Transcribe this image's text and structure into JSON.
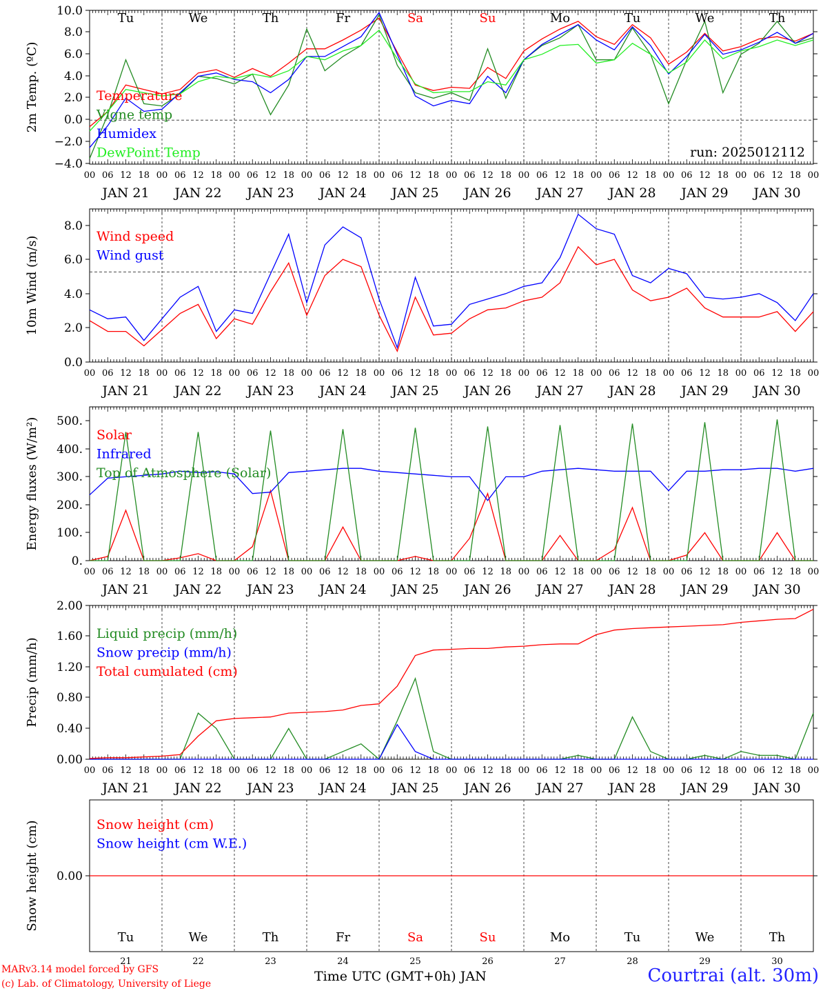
{
  "colors": {
    "red": "#ff0000",
    "green": "#228b22",
    "blue": "#0000ff",
    "lime": "#22ee22",
    "axis": "#000000",
    "grid": "#444444",
    "location": "#2222ff"
  },
  "footer": {
    "credit_line1": "MARv3.14 model forced by GFS",
    "credit_line2": "(c) Lab. of Climatology, University of Liege",
    "time_axis_label": "Time UTC (GMT+0h) JAN",
    "location": "Courtrai (alt. 30m)"
  },
  "chart_data": [
    {
      "type": "line",
      "panel": "temperature",
      "ylabel": "2m Temp. (ºC)",
      "ylim": [
        -4,
        10
      ],
      "yticks": [
        "10.0",
        "8.0",
        "6.0",
        "4.0",
        "2.0",
        "0.0",
        "−2.0",
        "−4.0"
      ],
      "reference_line": 0,
      "annotation": "run: 2025012112",
      "weekdays": [
        {
          "label": "Tu",
          "color": "#000000"
        },
        {
          "label": "We",
          "color": "#000000"
        },
        {
          "label": "Th",
          "color": "#000000"
        },
        {
          "label": "Fr",
          "color": "#000000"
        },
        {
          "label": "Sa",
          "color": "#ff0000"
        },
        {
          "label": "Su",
          "color": "#ff0000"
        },
        {
          "label": "Mo",
          "color": "#000000"
        },
        {
          "label": "Tu",
          "color": "#000000"
        },
        {
          "label": "We",
          "color": "#000000"
        },
        {
          "label": "Th",
          "color": "#000000"
        }
      ],
      "x_hours": [
        0,
        6,
        12,
        18,
        24,
        30,
        36,
        42,
        48,
        54,
        60,
        66,
        72,
        78,
        84,
        90,
        96,
        102,
        108,
        114,
        120,
        126,
        132,
        138,
        144,
        150,
        156,
        162,
        168,
        174,
        180,
        186,
        192,
        198,
        204,
        210,
        216,
        222,
        228,
        234,
        240
      ],
      "series": [
        {
          "name": "Temperature",
          "color": "#ff0000",
          "values": [
            -0.6,
            0.8,
            3.2,
            2.8,
            2.4,
            2.8,
            4.3,
            4.6,
            3.9,
            4.7,
            4.0,
            5.2,
            6.5,
            6.5,
            7.3,
            8.2,
            9.3,
            6.2,
            3.2,
            2.7,
            3.0,
            2.9,
            4.8,
            3.8,
            6.3,
            7.4,
            8.3,
            9.0,
            7.6,
            6.9,
            8.7,
            7.5,
            5.1,
            6.2,
            7.9,
            6.3,
            6.7,
            7.4,
            7.6,
            7.2,
            7.9
          ]
        },
        {
          "name": "Vigne temp",
          "color": "#228b22",
          "values": [
            -3.5,
            0.5,
            5.5,
            1.5,
            1.3,
            2.4,
            4.0,
            3.8,
            3.3,
            4.2,
            0.5,
            3.2,
            8.3,
            4.5,
            5.8,
            6.8,
            9.6,
            5.0,
            2.5,
            2.0,
            2.5,
            1.8,
            6.5,
            2.0,
            5.5,
            6.8,
            7.5,
            8.7,
            5.5,
            5.5,
            8.4,
            6.0,
            1.5,
            5.5,
            9.0,
            2.5,
            6.0,
            7.0,
            9.0,
            7.0,
            7.5
          ]
        },
        {
          "name": "Humidex",
          "color": "#0000ff",
          "values": [
            -2.5,
            -0.5,
            2.0,
            0.8,
            1.0,
            2.5,
            4.0,
            4.3,
            3.7,
            3.5,
            2.5,
            3.7,
            5.8,
            5.8,
            6.7,
            7.6,
            9.8,
            6.0,
            2.2,
            1.3,
            1.8,
            1.5,
            4.0,
            2.5,
            5.5,
            6.9,
            7.8,
            8.7,
            7.3,
            6.4,
            8.5,
            6.8,
            4.2,
            5.8,
            7.8,
            6.0,
            6.4,
            7.1,
            8.0,
            7.0,
            7.9
          ]
        },
        {
          "name": "DewPoint Temp",
          "color": "#22ee22",
          "values": [
            -1.0,
            0.8,
            2.8,
            2.5,
            2.2,
            2.4,
            3.5,
            4.0,
            3.8,
            4.2,
            3.9,
            4.5,
            5.8,
            5.5,
            6.3,
            6.8,
            8.2,
            5.6,
            3.3,
            2.5,
            2.6,
            2.6,
            3.5,
            3.2,
            5.5,
            6.0,
            6.8,
            6.9,
            5.2,
            5.5,
            7.0,
            6.0,
            4.3,
            5.3,
            7.3,
            5.6,
            6.3,
            6.7,
            7.3,
            6.8,
            7.3
          ]
        }
      ],
      "legend": "top-left"
    },
    {
      "type": "line",
      "panel": "wind",
      "ylabel": "10m Wind (m/s)",
      "ylim": [
        0,
        8.5
      ],
      "yticks": [
        "8.0",
        "6.0",
        "4.0",
        "2.0",
        "0.0"
      ],
      "reference_line": 5.0,
      "x_hours": [
        0,
        6,
        12,
        18,
        24,
        30,
        36,
        42,
        48,
        54,
        60,
        66,
        72,
        78,
        84,
        90,
        96,
        102,
        108,
        114,
        120,
        126,
        132,
        138,
        144,
        150,
        156,
        162,
        168,
        174,
        180,
        186,
        192,
        198,
        204,
        210,
        216,
        222,
        228,
        234,
        240
      ],
      "series": [
        {
          "name": "Wind speed",
          "color": "#ff0000",
          "values": [
            2.3,
            1.7,
            1.7,
            0.9,
            1.8,
            2.7,
            3.2,
            1.3,
            2.4,
            2.1,
            3.9,
            5.5,
            2.6,
            4.8,
            5.7,
            5.3,
            2.6,
            0.6,
            3.6,
            1.5,
            1.6,
            2.4,
            2.9,
            3.0,
            3.4,
            3.6,
            4.4,
            6.4,
            5.4,
            5.7,
            4.0,
            3.4,
            3.6,
            4.1,
            3.0,
            2.5,
            2.5,
            2.5,
            2.8,
            1.7,
            2.8
          ]
        },
        {
          "name": "Wind gust",
          "color": "#0000ff",
          "values": [
            2.9,
            2.4,
            2.5,
            1.2,
            2.4,
            3.6,
            4.2,
            1.7,
            2.9,
            2.7,
            4.9,
            7.1,
            3.3,
            6.5,
            7.5,
            6.9,
            3.5,
            0.8,
            4.7,
            2.0,
            2.1,
            3.2,
            3.5,
            3.8,
            4.2,
            4.4,
            5.8,
            8.2,
            7.4,
            7.1,
            4.8,
            4.4,
            5.2,
            4.9,
            3.6,
            3.5,
            3.6,
            3.8,
            3.3,
            2.3,
            3.8
          ]
        }
      ],
      "legend": "top-left"
    },
    {
      "type": "line",
      "panel": "energy",
      "ylabel": "Energy fluxes (W/m²)",
      "ylim": [
        0,
        550
      ],
      "yticks": [
        "500.",
        "400.",
        "300.",
        "200.",
        "100.",
        "0."
      ],
      "x_hours": [
        0,
        6,
        12,
        18,
        24,
        30,
        36,
        42,
        48,
        54,
        60,
        66,
        72,
        78,
        84,
        90,
        96,
        102,
        108,
        114,
        120,
        126,
        132,
        138,
        144,
        150,
        156,
        162,
        168,
        174,
        180,
        186,
        192,
        198,
        204,
        210,
        216,
        222,
        228,
        234,
        240
      ],
      "series": [
        {
          "name": "Solar",
          "color": "#ff0000",
          "values": [
            0,
            15,
            180,
            0,
            0,
            10,
            25,
            0,
            0,
            50,
            250,
            0,
            0,
            0,
            120,
            0,
            0,
            0,
            15,
            0,
            0,
            80,
            240,
            0,
            0,
            0,
            90,
            0,
            0,
            40,
            190,
            0,
            0,
            20,
            100,
            0,
            0,
            0,
            100,
            0,
            0
          ]
        },
        {
          "name": "Infrared",
          "color": "#0000ff",
          "values": [
            235,
            295,
            300,
            305,
            310,
            320,
            315,
            318,
            310,
            240,
            245,
            315,
            320,
            325,
            330,
            330,
            320,
            315,
            310,
            305,
            300,
            300,
            215,
            300,
            300,
            320,
            325,
            330,
            325,
            320,
            320,
            320,
            250,
            320,
            320,
            325,
            325,
            330,
            330,
            320,
            330
          ]
        },
        {
          "name": "Top of Atmosphere (Solar)",
          "color": "#228b22",
          "values": [
            0,
            0,
            460,
            0,
            0,
            0,
            460,
            0,
            0,
            0,
            465,
            0,
            0,
            0,
            470,
            0,
            0,
            0,
            475,
            0,
            0,
            0,
            480,
            0,
            0,
            0,
            485,
            0,
            0,
            0,
            490,
            0,
            0,
            0,
            495,
            0,
            0,
            0,
            505,
            0,
            0
          ]
        }
      ],
      "legend": "top-left"
    },
    {
      "type": "line",
      "panel": "precip",
      "ylabel": "Precip (mm/h)",
      "ylim": [
        0,
        2.0
      ],
      "yticks": [
        "2.00",
        "1.60",
        "1.20",
        "0.80",
        "0.40",
        "0.00"
      ],
      "x_hours": [
        0,
        6,
        12,
        18,
        24,
        30,
        36,
        42,
        48,
        54,
        60,
        66,
        72,
        78,
        84,
        90,
        96,
        102,
        108,
        114,
        120,
        126,
        132,
        138,
        144,
        150,
        156,
        162,
        168,
        174,
        180,
        186,
        192,
        198,
        204,
        210,
        216,
        222,
        228,
        234,
        240
      ],
      "series": [
        {
          "name": "Liquid precip (mm/h)",
          "color": "#228b22",
          "values": [
            0,
            0,
            0,
            0,
            0,
            0,
            0.6,
            0.4,
            0,
            0,
            0,
            0.4,
            0,
            0,
            0.1,
            0.2,
            0,
            0.5,
            1.05,
            0.1,
            0,
            0,
            0,
            0,
            0,
            0,
            0,
            0.05,
            0,
            0,
            0.55,
            0.1,
            0,
            0,
            0.05,
            0,
            0.1,
            0.05,
            0.05,
            0,
            0.6
          ]
        },
        {
          "name": "Snow precip (mm/h)",
          "color": "#0000ff",
          "values": [
            0,
            0,
            0,
            0,
            0,
            0,
            0,
            0,
            0,
            0,
            0,
            0,
            0,
            0,
            0,
            0,
            0,
            0.45,
            0.1,
            0,
            0,
            0,
            0,
            0,
            0,
            0,
            0,
            0,
            0,
            0,
            0,
            0,
            0,
            0,
            0,
            0,
            0,
            0,
            0,
            0,
            0
          ]
        },
        {
          "name": "Total cumulated (cm)",
          "color": "#ff0000",
          "values": [
            0.01,
            0.02,
            0.02,
            0.03,
            0.04,
            0.06,
            0.3,
            0.5,
            0.53,
            0.54,
            0.55,
            0.6,
            0.61,
            0.62,
            0.64,
            0.7,
            0.72,
            0.95,
            1.35,
            1.42,
            1.43,
            1.44,
            1.44,
            1.46,
            1.47,
            1.49,
            1.5,
            1.5,
            1.62,
            1.68,
            1.7,
            1.71,
            1.72,
            1.73,
            1.74,
            1.75,
            1.78,
            1.8,
            1.82,
            1.83,
            1.95
          ]
        }
      ],
      "legend": "top-left"
    },
    {
      "type": "line",
      "panel": "snow",
      "ylabel": "Snow height (cm)",
      "ylim": [
        -1,
        1
      ],
      "yticks": [
        "0.00"
      ],
      "x_hours": [
        0,
        240
      ],
      "series": [
        {
          "name": "Snow height (cm)",
          "color": "#ff0000",
          "values": [
            0,
            0
          ]
        },
        {
          "name": "Snow height (cm W.E.)",
          "color": "#0000ff",
          "values": []
        }
      ],
      "weekdays": [
        {
          "label": "Tu",
          "color": "#000000"
        },
        {
          "label": "We",
          "color": "#000000"
        },
        {
          "label": "Th",
          "color": "#000000"
        },
        {
          "label": "Fr",
          "color": "#000000"
        },
        {
          "label": "Sa",
          "color": "#ff0000"
        },
        {
          "label": "Su",
          "color": "#ff0000"
        },
        {
          "label": "Mo",
          "color": "#000000"
        },
        {
          "label": "Tu",
          "color": "#000000"
        },
        {
          "label": "We",
          "color": "#000000"
        },
        {
          "label": "Th",
          "color": "#000000"
        }
      ],
      "day_numbers": [
        "21",
        "22",
        "23",
        "24",
        "25",
        "26",
        "27",
        "28",
        "29",
        "30"
      ],
      "legend": "top-left"
    }
  ],
  "x_axis": {
    "hour_labels": [
      "00",
      "06",
      "12",
      "18"
    ],
    "end_label": "00",
    "dates": [
      "JAN 21",
      "JAN 22",
      "JAN 23",
      "JAN 24",
      "JAN 25",
      "JAN 26",
      "JAN 27",
      "JAN 28",
      "JAN 29",
      "JAN 30"
    ]
  }
}
